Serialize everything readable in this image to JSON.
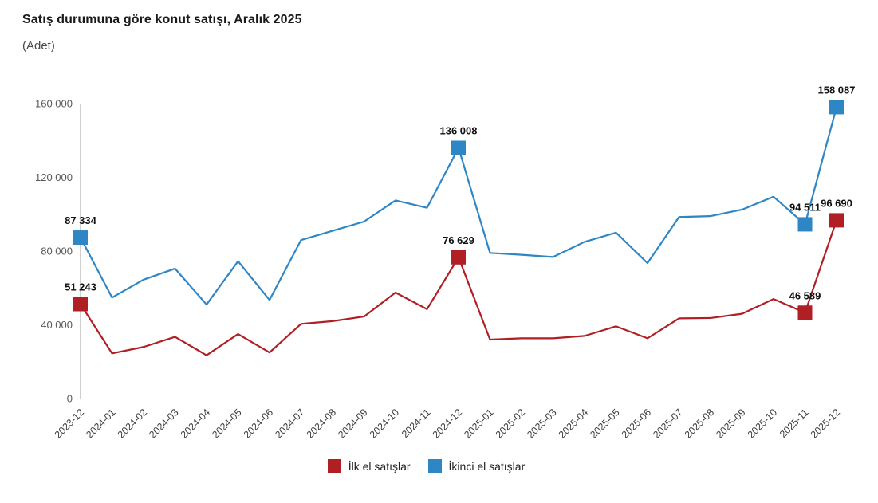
{
  "page": {
    "title": "Satış durumuna göre konut satışı, Aralık 2025",
    "unit_label": "(Adet)"
  },
  "colors": {
    "first_hand": "#b01f24",
    "second_hand": "#2e86c5",
    "axis_line": "#cfcfcf",
    "y_tick_text": "#595959",
    "x_tick_text": "#3d3d3d",
    "point_label_text": "#111111"
  },
  "chart_data": {
    "type": "line",
    "title": "Satış durumuna göre konut satışı, Aralık 2025",
    "unit": "(Adet)",
    "grid": false,
    "legend_position": "bottom",
    "categories": [
      "2023-12",
      "2024-01",
      "2024-02",
      "2024-03",
      "2024-04",
      "2024-05",
      "2024-06",
      "2024-07",
      "2024-08",
      "2024-09",
      "2024-10",
      "2024-11",
      "2024-12",
      "2025-01",
      "2025-02",
      "2025-03",
      "2025-04",
      "2025-05",
      "2025-06",
      "2025-07",
      "2025-08",
      "2025-09",
      "2025-10",
      "2025-11",
      "2025-12"
    ],
    "y_axis": {
      "min": 0,
      "max": 160000,
      "ticks": [
        {
          "value": 0,
          "label": "0"
        },
        {
          "value": 40000,
          "label": "40 000"
        },
        {
          "value": 80000,
          "label": "80 000"
        },
        {
          "value": 120000,
          "label": "120 000"
        },
        {
          "value": 160000,
          "label": "160 000"
        }
      ]
    },
    "series": [
      {
        "name": "İlk el satışlar",
        "color": "#b01f24",
        "values": [
          51243,
          24500,
          28000,
          33500,
          23500,
          35000,
          25000,
          40500,
          42000,
          44500,
          57500,
          48500,
          76629,
          32000,
          32700,
          32700,
          34000,
          39200,
          32700,
          43500,
          43700,
          46000,
          54000,
          46589,
          96690
        ],
        "point_labels": {
          "2023-12": "51 243",
          "2024-12": "76 629",
          "2025-11": "46 589",
          "2025-12": "96 690"
        }
      },
      {
        "name": "İkinci el satışlar",
        "color": "#2e86c5",
        "values": [
          87334,
          54800,
          64500,
          70500,
          51000,
          74500,
          53500,
          86000,
          91000,
          96000,
          107500,
          103500,
          136008,
          79000,
          78000,
          76800,
          85000,
          90000,
          73500,
          98500,
          99000,
          102500,
          109500,
          94511,
          158087
        ],
        "point_labels": {
          "2023-12": "87 334",
          "2024-12": "136 008",
          "2025-11": "94 511",
          "2025-12": "158 087"
        }
      }
    ]
  }
}
